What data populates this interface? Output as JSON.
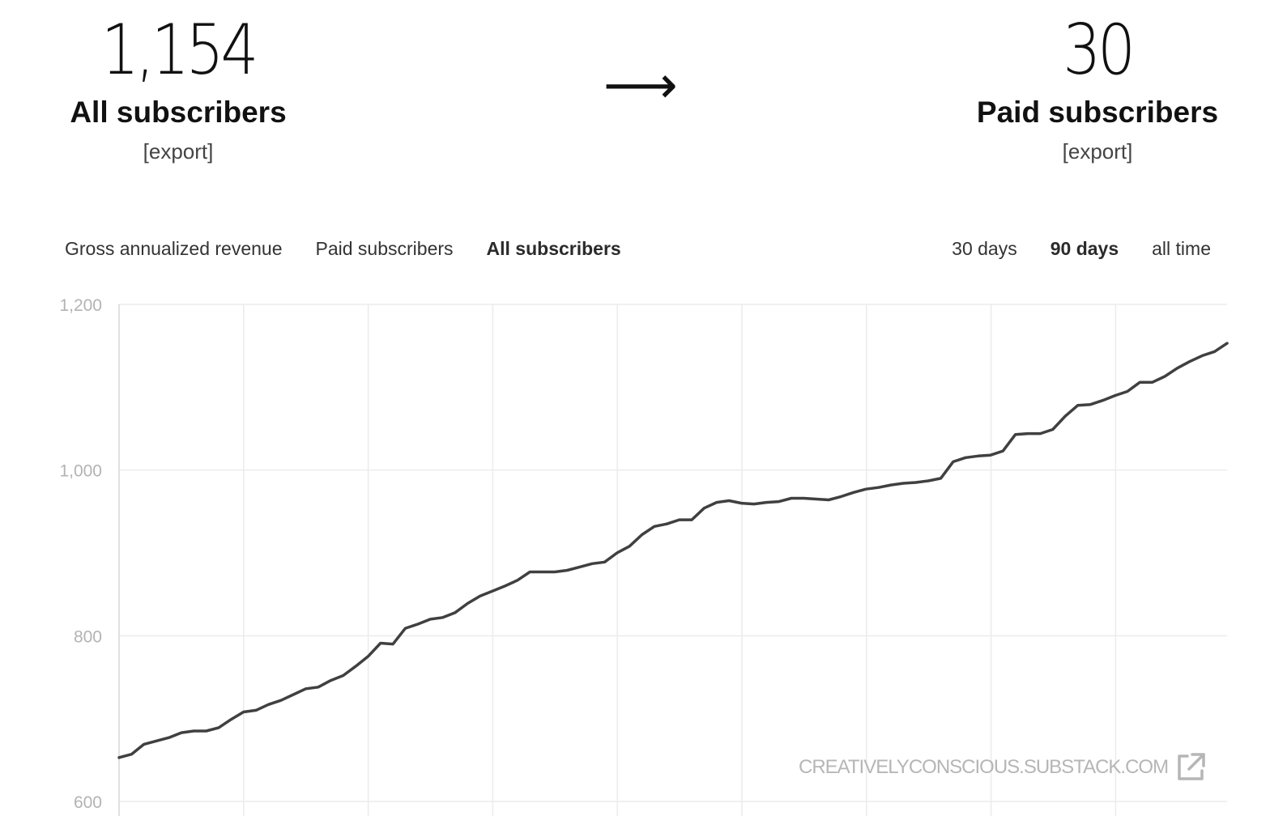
{
  "stats": {
    "all": {
      "number": "1,154",
      "label": "All subscribers",
      "export": "[export]"
    },
    "arrow": "⟶",
    "paid": {
      "number": "30",
      "label": "Paid subscribers",
      "export": "[export]"
    }
  },
  "metric_tabs": [
    {
      "label": "Gross annualized revenue",
      "active": false
    },
    {
      "label": "Paid subscribers",
      "active": false
    },
    {
      "label": "All subscribers",
      "active": true
    }
  ],
  "range_tabs": [
    {
      "label": "30 days",
      "active": false
    },
    {
      "label": "90 days",
      "active": true
    },
    {
      "label": "all time",
      "active": false
    }
  ],
  "watermark": {
    "text": "CREATIVELYCONSCIOUS.SUBSTACK.COM",
    "icon": "external-link-icon"
  },
  "colors": {
    "line": "#404040",
    "grid": "#ececec",
    "tick": "#b3b3b3"
  },
  "chart_data": {
    "type": "line",
    "grid": true,
    "ylim": [
      600,
      1200
    ],
    "yticks": [
      "1,200",
      "1,000",
      "800",
      "600"
    ],
    "ytick_values": [
      1200,
      1000,
      800,
      600
    ],
    "series": [
      {
        "values": [
          653,
          657,
          669,
          673,
          677,
          683,
          685,
          685,
          689,
          699,
          708,
          710,
          717,
          722,
          729,
          736,
          738,
          746,
          752,
          763,
          775,
          791,
          790,
          809,
          814,
          820,
          822,
          828,
          839,
          848,
          854,
          860,
          867,
          877,
          877,
          877,
          879,
          883,
          887,
          889,
          900,
          908,
          922,
          932,
          935,
          940,
          940,
          954,
          961,
          963,
          960,
          959,
          961,
          962,
          966,
          966,
          965,
          964,
          968,
          973,
          977,
          979,
          982,
          984,
          985,
          987,
          990,
          1010,
          1015,
          1017,
          1018,
          1023,
          1043,
          1044,
          1044,
          1049,
          1065,
          1078,
          1079,
          1084,
          1090,
          1095,
          1106,
          1106,
          1113,
          1123,
          1131,
          1138,
          1143,
          1153
        ]
      }
    ]
  }
}
